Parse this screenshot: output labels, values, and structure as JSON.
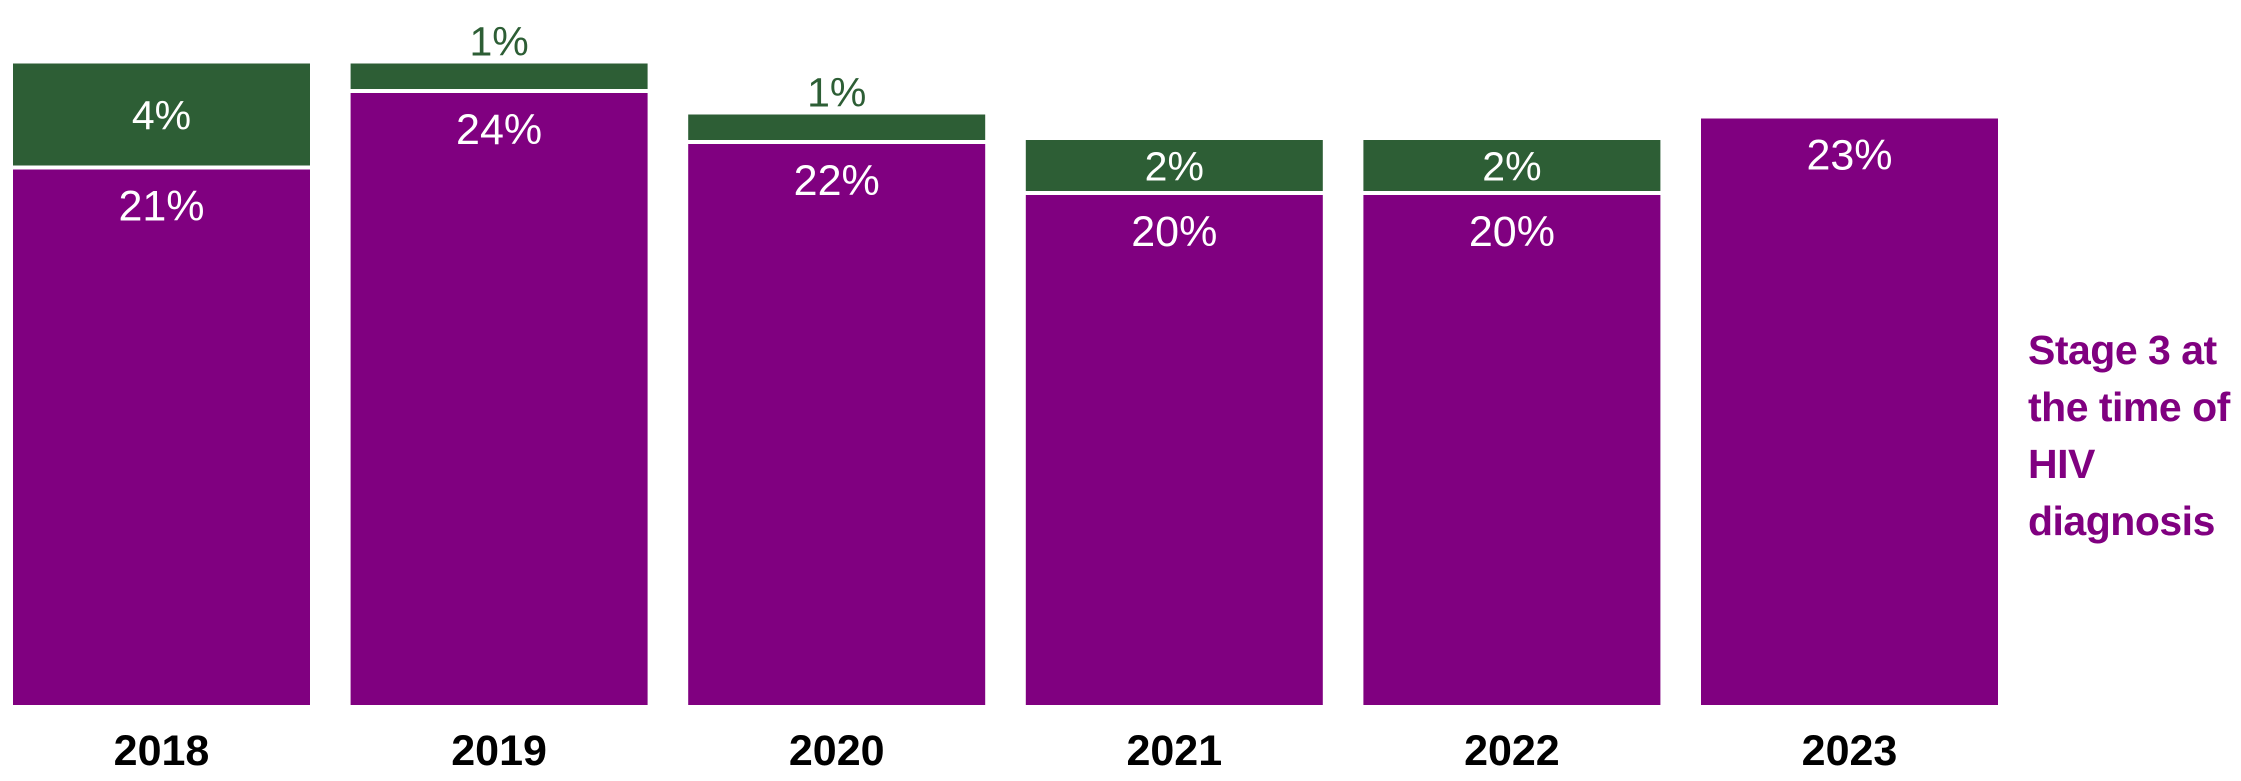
{
  "chart_data": {
    "type": "bar",
    "stacked": true,
    "categories": [
      "2018",
      "2019",
      "2020",
      "2021",
      "2022",
      "2023"
    ],
    "series": [
      {
        "name": "Stage 3 at the time of HIV diagnosis",
        "values": [
          21,
          24,
          22,
          20,
          20,
          23
        ],
        "labels": [
          "21%",
          "24%",
          "22%",
          "20%",
          "20%",
          "23%"
        ],
        "color": "#800080",
        "label_color": "#ffffff"
      },
      {
        "name": "",
        "values": [
          4,
          1,
          1,
          2,
          2,
          0
        ],
        "labels": [
          "4%",
          "1%",
          "1%",
          "2%",
          "2%",
          ""
        ],
        "color": "#2d5e35",
        "label_color_inside": "#ffffff",
        "label_color_outside": "#2d5e35"
      }
    ],
    "legend_lines": [
      "Stage 3 at",
      "the time of",
      "HIV",
      "diagnosis"
    ],
    "legend_placement": "right",
    "grid": false,
    "y_axis_visible": false
  }
}
